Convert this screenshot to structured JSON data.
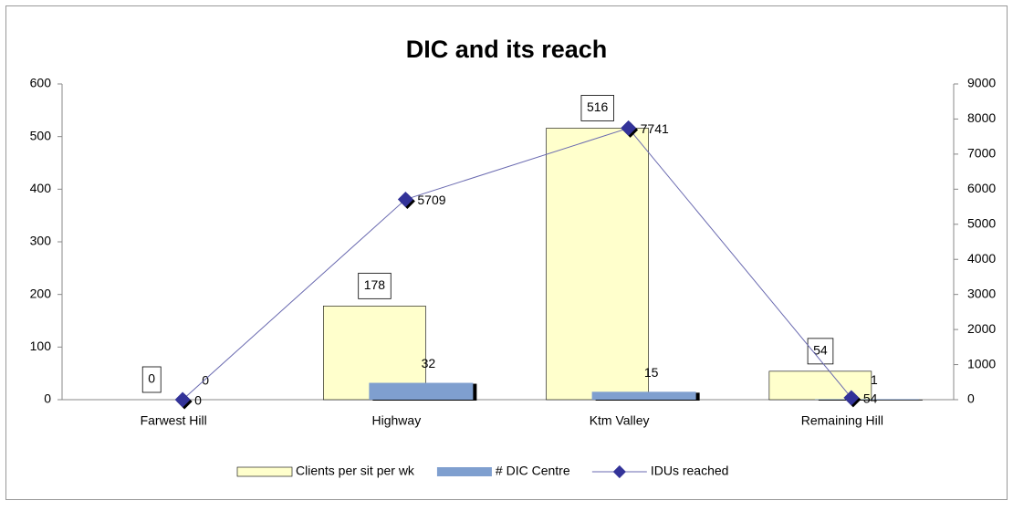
{
  "chart_data": {
    "type": "bar",
    "title": "DIC and its reach",
    "categories": [
      "Farwest Hill",
      "Highway",
      "Ktm Valley",
      "Remaining Hill"
    ],
    "series": [
      {
        "name": "Clients per sit per wk",
        "color": "#ffffcc",
        "type": "bar",
        "values": [
          0,
          178,
          516,
          54
        ]
      },
      {
        "name": "# DIC Centre",
        "color": "#7f9fcf",
        "type": "bar",
        "values": [
          0,
          32,
          15,
          1
        ]
      },
      {
        "name": "IDUs reached",
        "color": "#333399",
        "type": "line",
        "axis": "y2",
        "values": [
          0,
          5709,
          7741,
          54
        ]
      }
    ],
    "ylim": [
      0,
      600
    ],
    "yticks": [
      0,
      100,
      200,
      300,
      400,
      500,
      600
    ],
    "y2lim": [
      0,
      9000
    ],
    "y2ticks": [
      0,
      1000,
      2000,
      3000,
      4000,
      5000,
      6000,
      7000,
      8000,
      9000
    ],
    "legend": "bottom"
  }
}
